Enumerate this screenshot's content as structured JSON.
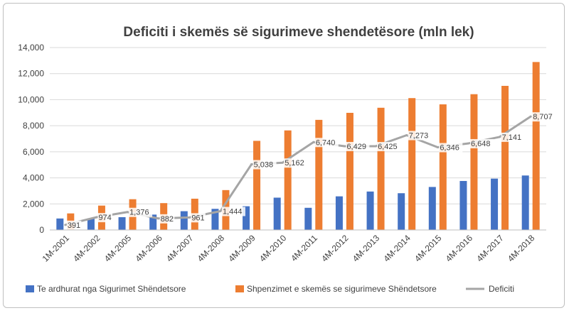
{
  "chart_data": {
    "type": "bar",
    "title": "Deficiti i skemës së sigurimeve shendetësore (mln lek)",
    "xlabel": "",
    "ylabel": "",
    "ylim": [
      0,
      14000
    ],
    "yticks": [
      0,
      2000,
      4000,
      6000,
      8000,
      10000,
      12000,
      14000
    ],
    "ytick_labels": [
      "0",
      "2,000",
      "4,000",
      "6,000",
      "8,000",
      "10,000",
      "12,000",
      "14,000"
    ],
    "grid": true,
    "legend_position": "bottom",
    "categories": [
      "1M-2001",
      "4M-2002",
      "4M-2005",
      "4M-2006",
      "4M-2007",
      "4M-2008",
      "4M-2009",
      "4M-2010",
      "4M-2011",
      "4M-2012",
      "4M-2013",
      "4M-2014",
      "4M-2015",
      "4M-2016",
      "4M-2017",
      "4M-2018"
    ],
    "series": [
      {
        "name": "Te ardhurat nga Sigurimet Shëndetsore",
        "type": "bar",
        "color": "#4472c4",
        "values": [
          880,
          900,
          980,
          1180,
          1440,
          1620,
          1820,
          2480,
          1700,
          2580,
          2950,
          2820,
          3300,
          3760,
          3940,
          4180
        ]
      },
      {
        "name": "Shpenzimet e skemës se sigurimeve Shëndetsore",
        "type": "bar",
        "color": "#ed7d31",
        "values": [
          1270,
          1870,
          2360,
          2060,
          2400,
          3060,
          6840,
          7640,
          8450,
          8990,
          9380,
          10120,
          9640,
          10420,
          11060,
          12890
        ]
      },
      {
        "name": "Deficiti",
        "type": "line",
        "color": "#a5a5a5",
        "values": [
          391,
          974,
          1376,
          882,
          961,
          1444,
          5038,
          5162,
          6740,
          6429,
          6425,
          7273,
          6346,
          6648,
          7141,
          8707
        ],
        "labels": [
          "391",
          "974",
          "1,376",
          "882",
          "961",
          "1,444",
          "5,038",
          "5,162",
          "6,740",
          "6,429",
          "6,425",
          "7,273",
          "6,346",
          "6,648",
          "7,141",
          "8,707"
        ]
      }
    ]
  }
}
